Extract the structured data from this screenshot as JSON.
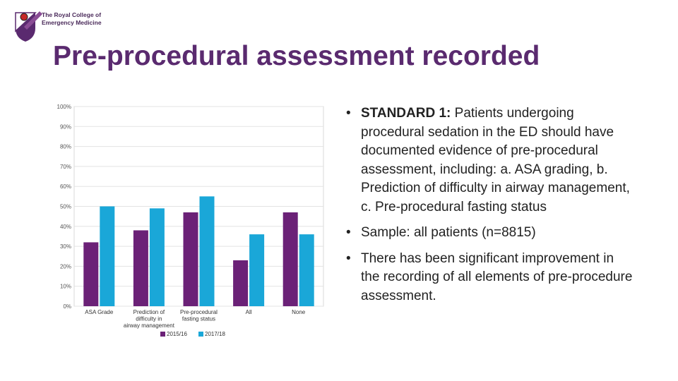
{
  "header": {
    "logo_line1": "The Royal College of",
    "logo_line2": "Emergency Medicine",
    "title": "Pre-procedural assessment recorded"
  },
  "colors": {
    "title": "#5a2a6f",
    "series_2015": "#6b2177",
    "series_2017": "#1aa7d8"
  },
  "chart_data": {
    "type": "bar",
    "title": "",
    "xlabel": "",
    "ylabel": "",
    "ylim": [
      0,
      100
    ],
    "yticks": [
      "100%",
      "90%",
      "80%",
      "70%",
      "60%",
      "50%",
      "40%",
      "30%",
      "20%",
      "10%",
      "0%"
    ],
    "categories": [
      [
        "ASA Grade"
      ],
      [
        "Prediction of",
        "difficulty in",
        "airway management"
      ],
      [
        "Pre-procedural",
        "fasting status"
      ],
      [
        "All"
      ],
      [
        "None"
      ]
    ],
    "series": [
      {
        "name": "2015/16",
        "values": [
          32,
          38,
          47,
          23,
          47
        ]
      },
      {
        "name": "2017/18",
        "values": [
          50,
          49,
          55,
          36,
          36
        ]
      }
    ],
    "legend_position": "bottom"
  },
  "bullets": {
    "b1_bold": "STANDARD 1:",
    "b1_text": " Patients undergoing procedural sedation in the ED should have documented evidence of pre-procedural assessment, including: a. ASA grading, b. Prediction of difficulty in airway management, c. Pre-procedural fasting status",
    "b2_text": "Sample: all patients (n=8815)",
    "b3_text": "There has been significant improvement in the recording of all elements of pre-procedure assessment."
  }
}
